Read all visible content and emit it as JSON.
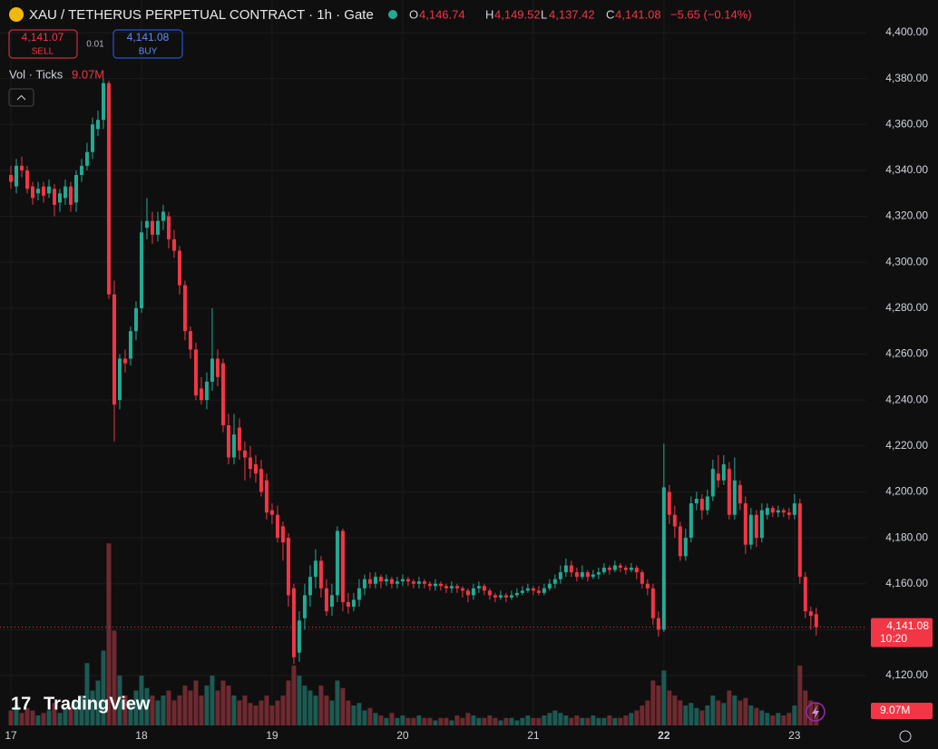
{
  "header": {
    "title": "XAU / TETHERUS PERPETUAL CONTRACT · 1h · Gate",
    "o_key": "O",
    "open": "4,146.74",
    "h_key": "H",
    "high": "4,149.52",
    "l_key": "L",
    "low": "4,137.42",
    "c_key": "C",
    "close": "4,141.08",
    "change": "−5.65 (−0.14%)",
    "sell_price": "4,141.07",
    "sell": "SELL",
    "spread": "0.01",
    "buy_price": "4,141.08",
    "buy": "BUY",
    "vol_title": "Vol · Ticks",
    "vol_value": "9.07M"
  },
  "brand": "TradingView",
  "chart_data": {
    "type": "candlestick",
    "up_color": "#22ab94",
    "down_color": "#f23645",
    "up_volume_color": "#1c5a53",
    "down_volume_color": "#6e2a30",
    "ylim": [
      4098.3,
      4414.2
    ],
    "xlim": [
      -2,
      157.2
    ],
    "vlim": [
      0,
      80
    ],
    "grid": true,
    "yticks": [
      {
        "value": 4120,
        "label": "4,120.00"
      },
      {
        "value": 4140,
        "label": "4,140.00"
      },
      {
        "value": 4160,
        "label": "4,160.00"
      },
      {
        "value": 4180,
        "label": "4,180.00"
      },
      {
        "value": 4200,
        "label": "4,200.00"
      },
      {
        "value": 4220,
        "label": "4,220.00"
      },
      {
        "value": 4240,
        "label": "4,240.00"
      },
      {
        "value": 4260,
        "label": "4,260.00"
      },
      {
        "value": 4280,
        "label": "4,280.00"
      },
      {
        "value": 4300,
        "label": "4,300.00"
      },
      {
        "value": 4320,
        "label": "4,320.00"
      },
      {
        "value": 4340,
        "label": "4,340.00"
      },
      {
        "value": 4360,
        "label": "4,360.00"
      },
      {
        "value": 4380,
        "label": "4,380.00"
      },
      {
        "value": 4400,
        "label": "4,400.00"
      }
    ],
    "xticks": [
      {
        "value": 0,
        "label": "17"
      },
      {
        "value": 24,
        "label": "18"
      },
      {
        "value": 48,
        "label": "19"
      },
      {
        "value": 72,
        "label": "20"
      },
      {
        "value": 96,
        "label": "21"
      },
      {
        "value": 120,
        "label": "22"
      },
      {
        "value": 144,
        "label": "23"
      }
    ],
    "last_price": {
      "value": 4141.08,
      "label": "4,141.08"
    },
    "countdown": "10:20",
    "candles": [
      [
        4338,
        4342,
        4332,
        4335
      ],
      [
        4333,
        4345,
        4330,
        4342
      ],
      [
        4342,
        4346,
        4337,
        4340
      ],
      [
        4340,
        4342,
        4330,
        4332
      ],
      [
        4333,
        4335,
        4325,
        4328
      ],
      [
        4330,
        4335,
        4327,
        4332
      ],
      [
        4333,
        4335,
        4326,
        4329
      ],
      [
        4330,
        4336,
        4328,
        4333
      ],
      [
        4332,
        4334,
        4320,
        4325
      ],
      [
        4326,
        4332,
        4322,
        4330
      ],
      [
        4328,
        4336,
        4325,
        4333
      ],
      [
        4333,
        4335,
        4322,
        4325
      ],
      [
        4326,
        4340,
        4322,
        4338
      ],
      [
        4338,
        4345,
        4335,
        4342
      ],
      [
        4342,
        4352,
        4340,
        4348
      ],
      [
        4348,
        4363,
        4345,
        4360
      ],
      [
        4358,
        4366,
        4355,
        4362
      ],
      [
        4362,
        4380,
        4358,
        4378
      ],
      [
        4378,
        4379,
        4284,
        4286
      ],
      [
        4286,
        4292,
        4222,
        4238
      ],
      [
        4240,
        4260,
        4236,
        4258
      ],
      [
        4258,
        4262,
        4252,
        4256
      ],
      [
        4258,
        4272,
        4255,
        4270
      ],
      [
        4270,
        4283,
        4266,
        4280
      ],
      [
        4280,
        4318,
        4278,
        4313
      ],
      [
        4315,
        4328,
        4310,
        4318
      ],
      [
        4318,
        4322,
        4308,
        4312
      ],
      [
        4312,
        4322,
        4309,
        4318
      ],
      [
        4318,
        4325,
        4314,
        4322
      ],
      [
        4320,
        4322,
        4306,
        4310
      ],
      [
        4310,
        4314,
        4302,
        4305
      ],
      [
        4305,
        4307,
        4286,
        4290
      ],
      [
        4290,
        4292,
        4266,
        4270
      ],
      [
        4270,
        4272,
        4258,
        4262
      ],
      [
        4262,
        4265,
        4240,
        4242
      ],
      [
        4245,
        4250,
        4238,
        4240
      ],
      [
        4240,
        4252,
        4236,
        4248
      ],
      [
        4248,
        4280,
        4244,
        4258
      ],
      [
        4258,
        4262,
        4246,
        4250
      ],
      [
        4256,
        4258,
        4226,
        4229
      ],
      [
        4229,
        4234,
        4212,
        4215
      ],
      [
        4215,
        4234,
        4212,
        4225
      ],
      [
        4228,
        4232,
        4214,
        4218
      ],
      [
        4218,
        4222,
        4205,
        4215
      ],
      [
        4215,
        4220,
        4206,
        4210
      ],
      [
        4212,
        4216,
        4204,
        4208
      ],
      [
        4210,
        4214,
        4198,
        4200
      ],
      [
        4205,
        4208,
        4188,
        4191
      ],
      [
        4192,
        4195,
        4186,
        4190
      ],
      [
        4190,
        4194,
        4178,
        4180
      ],
      [
        4185,
        4187,
        4170,
        4178
      ],
      [
        4180,
        4182,
        4150,
        4155
      ],
      [
        4158,
        4160,
        4125,
        4128
      ],
      [
        4130,
        4148,
        4126,
        4144
      ],
      [
        4145,
        4160,
        4140,
        4155
      ],
      [
        4155,
        4168,
        4150,
        4163
      ],
      [
        4163,
        4175,
        4158,
        4170
      ],
      [
        4170,
        4172,
        4154,
        4158
      ],
      [
        4158,
        4162,
        4146,
        4148
      ],
      [
        4150,
        4160,
        4146,
        4155
      ],
      [
        4155,
        4185,
        4152,
        4183
      ],
      [
        4183,
        4184,
        4148,
        4152
      ],
      [
        4152,
        4156,
        4147,
        4150
      ],
      [
        4150,
        4156,
        4148,
        4153
      ],
      [
        4153,
        4162,
        4150,
        4158
      ],
      [
        4158,
        4164,
        4155,
        4162
      ],
      [
        4162,
        4165,
        4158,
        4160
      ],
      [
        4160,
        4165,
        4158,
        4163
      ],
      [
        4163,
        4164,
        4158,
        4161
      ],
      [
        4161,
        4164,
        4159,
        4162
      ],
      [
        4162,
        4163,
        4158,
        4160
      ],
      [
        4160,
        4163,
        4158,
        4161
      ],
      [
        4161,
        4164,
        4159,
        4162
      ],
      [
        4162,
        4163,
        4159,
        4161
      ],
      [
        4161,
        4162,
        4158,
        4160
      ],
      [
        4160,
        4163,
        4158,
        4161
      ],
      [
        4161,
        4162,
        4158,
        4160
      ],
      [
        4160,
        4161,
        4157,
        4159
      ],
      [
        4159,
        4162,
        4157,
        4160
      ],
      [
        4160,
        4161,
        4157,
        4159
      ],
      [
        4159,
        4160,
        4156,
        4158
      ],
      [
        4158,
        4161,
        4156,
        4159
      ],
      [
        4159,
        4160,
        4156,
        4158
      ],
      [
        4158,
        4159,
        4154,
        4157
      ],
      [
        4157,
        4158,
        4152,
        4155
      ],
      [
        4155,
        4160,
        4153,
        4158
      ],
      [
        4158,
        4161,
        4156,
        4159
      ],
      [
        4159,
        4160,
        4155,
        4157
      ],
      [
        4157,
        4158,
        4153,
        4155
      ],
      [
        4155,
        4156,
        4152,
        4154
      ],
      [
        4154,
        4157,
        4153,
        4155
      ],
      [
        4155,
        4156,
        4152,
        4154
      ],
      [
        4154,
        4157,
        4153,
        4155
      ],
      [
        4155,
        4158,
        4154,
        4156
      ],
      [
        4156,
        4159,
        4155,
        4157
      ],
      [
        4157,
        4160,
        4156,
        4158
      ],
      [
        4158,
        4159,
        4155,
        4157
      ],
      [
        4157,
        4159,
        4155,
        4156
      ],
      [
        4156,
        4160,
        4155,
        4158
      ],
      [
        4158,
        4162,
        4157,
        4160
      ],
      [
        4160,
        4164,
        4158,
        4162
      ],
      [
        4162,
        4168,
        4160,
        4165
      ],
      [
        4165,
        4171,
        4163,
        4168
      ],
      [
        4168,
        4170,
        4163,
        4165
      ],
      [
        4165,
        4167,
        4161,
        4163
      ],
      [
        4163,
        4168,
        4162,
        4165
      ],
      [
        4165,
        4166,
        4161,
        4163
      ],
      [
        4163,
        4166,
        4162,
        4164
      ],
      [
        4164,
        4167,
        4162,
        4165
      ],
      [
        4165,
        4169,
        4164,
        4167
      ],
      [
        4167,
        4168,
        4164,
        4166
      ],
      [
        4166,
        4170,
        4165,
        4168
      ],
      [
        4168,
        4169,
        4165,
        4167
      ],
      [
        4167,
        4168,
        4164,
        4166
      ],
      [
        4166,
        4169,
        4165,
        4167
      ],
      [
        4167,
        4168,
        4162,
        4165
      ],
      [
        4165,
        4166,
        4158,
        4160
      ],
      [
        4160,
        4162,
        4155,
        4158
      ],
      [
        4158,
        4160,
        4142,
        4145
      ],
      [
        4145,
        4148,
        4137,
        4140
      ],
      [
        4140,
        4221,
        4139,
        4202
      ],
      [
        4200,
        4203,
        4186,
        4190
      ],
      [
        4190,
        4194,
        4180,
        4185
      ],
      [
        4185,
        4187,
        4170,
        4172
      ],
      [
        4172,
        4184,
        4170,
        4180
      ],
      [
        4180,
        4198,
        4178,
        4195
      ],
      [
        4195,
        4200,
        4192,
        4197
      ],
      [
        4197,
        4199,
        4188,
        4192
      ],
      [
        4192,
        4201,
        4190,
        4198
      ],
      [
        4198,
        4214,
        4196,
        4210
      ],
      [
        4208,
        4216,
        4202,
        4205
      ],
      [
        4205,
        4216,
        4203,
        4212
      ],
      [
        4210,
        4213,
        4188,
        4190
      ],
      [
        4190,
        4215,
        4188,
        4205
      ],
      [
        4203,
        4205,
        4192,
        4195
      ],
      [
        4195,
        4198,
        4173,
        4177
      ],
      [
        4177,
        4193,
        4175,
        4190
      ],
      [
        4190,
        4192,
        4176,
        4180
      ],
      [
        4180,
        4195,
        4178,
        4192
      ],
      [
        4190,
        4195,
        4188,
        4193
      ],
      [
        4193,
        4194,
        4189,
        4191
      ],
      [
        4191,
        4194,
        4189,
        4192
      ],
      [
        4192,
        4193,
        4189,
        4191
      ],
      [
        4191,
        4193,
        4188,
        4190
      ],
      [
        4190,
        4199,
        4188,
        4195
      ],
      [
        4195,
        4197,
        4160,
        4163
      ],
      [
        4163,
        4165,
        4145,
        4148
      ],
      [
        4148,
        4150,
        4140,
        4146
      ],
      [
        4146.74,
        4149.52,
        4137.42,
        4141.08
      ]
    ],
    "volume": [
      6,
      8,
      5,
      7,
      6,
      4,
      5,
      6,
      9,
      5,
      7,
      8,
      10,
      12,
      25,
      14,
      18,
      30,
      73,
      38,
      20,
      12,
      10,
      14,
      20,
      15,
      12,
      10,
      12,
      14,
      10,
      12,
      16,
      14,
      18,
      12,
      16,
      20,
      14,
      18,
      16,
      12,
      10,
      12,
      9,
      8,
      10,
      12,
      8,
      10,
      12,
      18,
      24,
      20,
      16,
      14,
      12,
      16,
      12,
      10,
      18,
      15,
      10,
      8,
      9,
      6,
      7,
      5,
      4,
      3,
      5,
      3,
      4,
      3,
      3,
      4,
      3,
      3,
      2,
      3,
      3,
      2,
      4,
      3,
      5,
      4,
      3,
      3,
      4,
      3,
      2,
      3,
      3,
      2,
      3,
      4,
      3,
      3,
      4,
      5,
      6,
      5,
      4,
      3,
      4,
      3,
      3,
      4,
      3,
      3,
      4,
      3,
      3,
      4,
      5,
      6,
      8,
      10,
      18,
      16,
      22,
      14,
      12,
      10,
      8,
      9,
      7,
      6,
      8,
      12,
      10,
      9,
      14,
      12,
      10,
      11,
      8,
      7,
      6,
      5,
      4,
      5,
      4,
      5,
      8,
      24,
      14,
      10,
      9.07
    ]
  }
}
